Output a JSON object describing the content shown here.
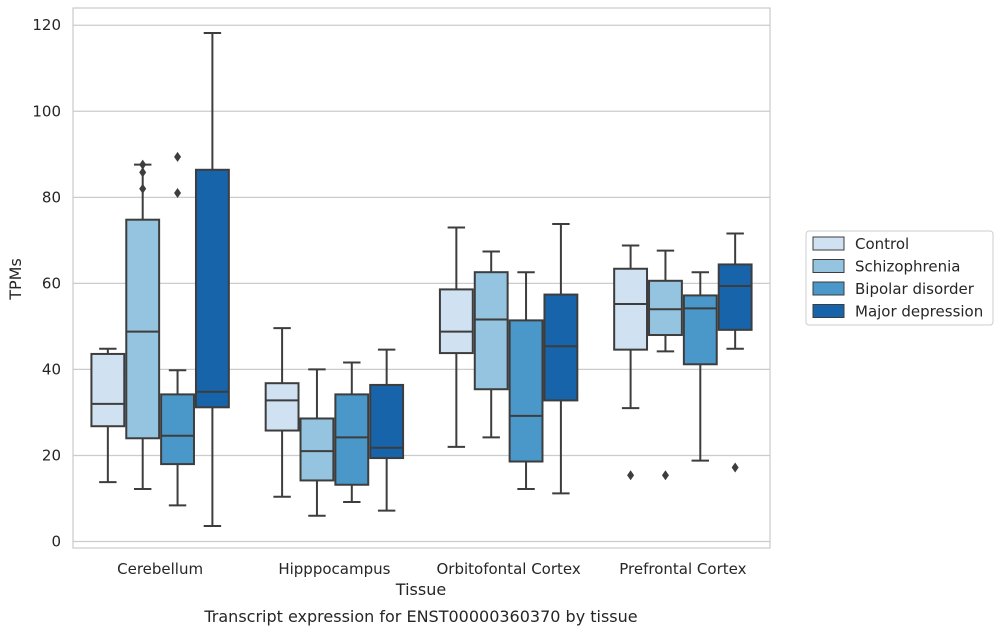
{
  "caption": "Transcript expression for ENST00000360370 by tissue",
  "chart_data": {
    "type": "box",
    "xlabel": "Tissue",
    "ylabel": "TPMs",
    "ylim": [
      -1.5,
      124
    ],
    "yticks": [
      0,
      20,
      40,
      60,
      80,
      100,
      120
    ],
    "grid": "horizontal",
    "legend_position": "right",
    "categories": [
      "Cerebellum",
      "Hipppocampus",
      "Orbitofontal Cortex",
      "Prefrontal Cortex"
    ],
    "colors": [
      "#d0e1f2",
      "#94c4df",
      "#4a98c9",
      "#1764ab"
    ],
    "series": [
      {
        "name": "Control",
        "boxes": [
          {
            "whislo": 13.8,
            "q1": 26.8,
            "med": 32.0,
            "q3": 43.6,
            "whishi": 44.8,
            "fliers": []
          },
          {
            "whislo": 10.4,
            "q1": 25.8,
            "med": 32.8,
            "q3": 36.8,
            "whishi": 49.6,
            "fliers": []
          },
          {
            "whislo": 22.0,
            "q1": 43.8,
            "med": 48.8,
            "q3": 58.6,
            "whishi": 73.0,
            "fliers": []
          },
          {
            "whislo": 31.0,
            "q1": 44.6,
            "med": 55.2,
            "q3": 63.4,
            "whishi": 68.8,
            "fliers": [
              15.4
            ]
          }
        ]
      },
      {
        "name": "Schizophrenia",
        "boxes": [
          {
            "whislo": 12.2,
            "q1": 24.0,
            "med": 48.8,
            "q3": 74.8,
            "whishi": 87.6,
            "fliers": [
              87.6,
              85.8,
              82.0
            ]
          },
          {
            "whislo": 6.0,
            "q1": 14.2,
            "med": 21.0,
            "q3": 28.6,
            "whishi": 40.0,
            "fliers": []
          },
          {
            "whislo": 24.2,
            "q1": 35.4,
            "med": 51.6,
            "q3": 62.6,
            "whishi": 67.4,
            "fliers": []
          },
          {
            "whislo": 44.2,
            "q1": 48.0,
            "med": 54.0,
            "q3": 60.6,
            "whishi": 67.6,
            "fliers": [
              15.4
            ]
          }
        ]
      },
      {
        "name": "Bipolar disorder",
        "boxes": [
          {
            "whislo": 8.4,
            "q1": 18.0,
            "med": 24.6,
            "q3": 34.2,
            "whishi": 39.8,
            "fliers": [
              89.4,
              81.0
            ]
          },
          {
            "whislo": 9.2,
            "q1": 13.2,
            "med": 24.2,
            "q3": 34.2,
            "whishi": 41.6,
            "fliers": []
          },
          {
            "whislo": 12.2,
            "q1": 18.6,
            "med": 29.2,
            "q3": 51.4,
            "whishi": 62.6,
            "fliers": []
          },
          {
            "whislo": 18.8,
            "q1": 41.2,
            "med": 54.2,
            "q3": 57.2,
            "whishi": 62.6,
            "fliers": []
          }
        ]
      },
      {
        "name": "Major depression",
        "boxes": [
          {
            "whislo": 3.6,
            "q1": 31.2,
            "med": 34.8,
            "q3": 86.4,
            "whishi": 118.2,
            "fliers": []
          },
          {
            "whislo": 7.2,
            "q1": 19.4,
            "med": 21.8,
            "q3": 36.4,
            "whishi": 44.6,
            "fliers": []
          },
          {
            "whislo": 11.2,
            "q1": 32.8,
            "med": 45.4,
            "q3": 57.4,
            "whishi": 73.8,
            "fliers": []
          },
          {
            "whislo": 44.8,
            "q1": 49.2,
            "med": 59.4,
            "q3": 64.4,
            "whishi": 71.6,
            "fliers": [
              17.2
            ]
          }
        ]
      }
    ]
  }
}
